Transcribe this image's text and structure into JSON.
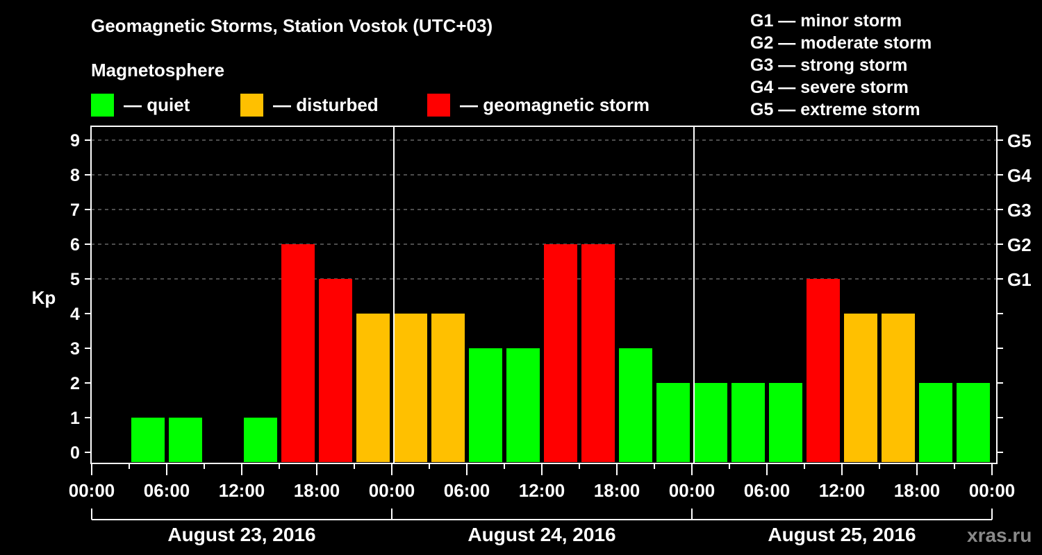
{
  "header": {
    "title": "Geomagnetic Storms, Station Vostok (UTC+03)",
    "subtitle": "Magnetosphere"
  },
  "legend": [
    {
      "label": "— quiet",
      "color": "#00ff00"
    },
    {
      "label": "— disturbed",
      "color": "#ffc000"
    },
    {
      "label": "— geomagnetic storm",
      "color": "#ff0000"
    }
  ],
  "g_scale_legend": [
    "G1 — minor storm",
    "G2 — moderate storm",
    "G3 — strong storm",
    "G4 — severe storm",
    "G5 — extreme storm"
  ],
  "watermark": "xras.ru",
  "chart_data": {
    "type": "bar",
    "title": "Geomagnetic Storms, Station Vostok (UTC+03)",
    "ylabel": "Kp",
    "xlabel": "",
    "ylim": [
      0,
      9
    ],
    "yticks": [
      0,
      1,
      2,
      3,
      4,
      5,
      6,
      7,
      8,
      9
    ],
    "right_axis_ticks": [
      {
        "kp": 5,
        "label": "G1"
      },
      {
        "kp": 6,
        "label": "G2"
      },
      {
        "kp": 7,
        "label": "G3"
      },
      {
        "kp": 8,
        "label": "G4"
      },
      {
        "kp": 9,
        "label": "G5"
      }
    ],
    "grid": "dashed horizontal at Kp 5-9",
    "xtick_labels": [
      "00:00",
      "06:00",
      "12:00",
      "18:00",
      "00:00",
      "06:00",
      "12:00",
      "18:00",
      "00:00",
      "06:00",
      "12:00",
      "18:00",
      "00:00"
    ],
    "days": [
      "August 23, 2016",
      "August 24, 2016",
      "August 25, 2016"
    ],
    "interval_hours": 3,
    "categories": [
      "Aug 23 00-03",
      "Aug 23 03-06",
      "Aug 23 06-09",
      "Aug 23 09-12",
      "Aug 23 12-15",
      "Aug 23 15-18",
      "Aug 23 18-21",
      "Aug 23 21-24",
      "Aug 24 00-03",
      "Aug 24 03-06",
      "Aug 24 06-09",
      "Aug 24 09-12",
      "Aug 24 12-15",
      "Aug 24 15-18",
      "Aug 24 18-21",
      "Aug 24 21-24",
      "Aug 25 00-03",
      "Aug 25 03-06",
      "Aug 25 06-09",
      "Aug 25 09-12",
      "Aug 25 12-15",
      "Aug 25 15-18",
      "Aug 25 18-21",
      "Aug 25 21-24"
    ],
    "values": [
      0,
      1,
      1,
      0,
      1,
      6,
      5,
      4,
      4,
      4,
      3,
      3,
      6,
      6,
      3,
      2,
      2,
      2,
      2,
      5,
      4,
      4,
      2,
      2
    ],
    "colors": {
      "quiet": "#00ff00",
      "disturbed": "#ffc000",
      "storm": "#ff0000"
    },
    "thresholds": {
      "disturbed_at": 4,
      "storm_at": 5
    }
  }
}
